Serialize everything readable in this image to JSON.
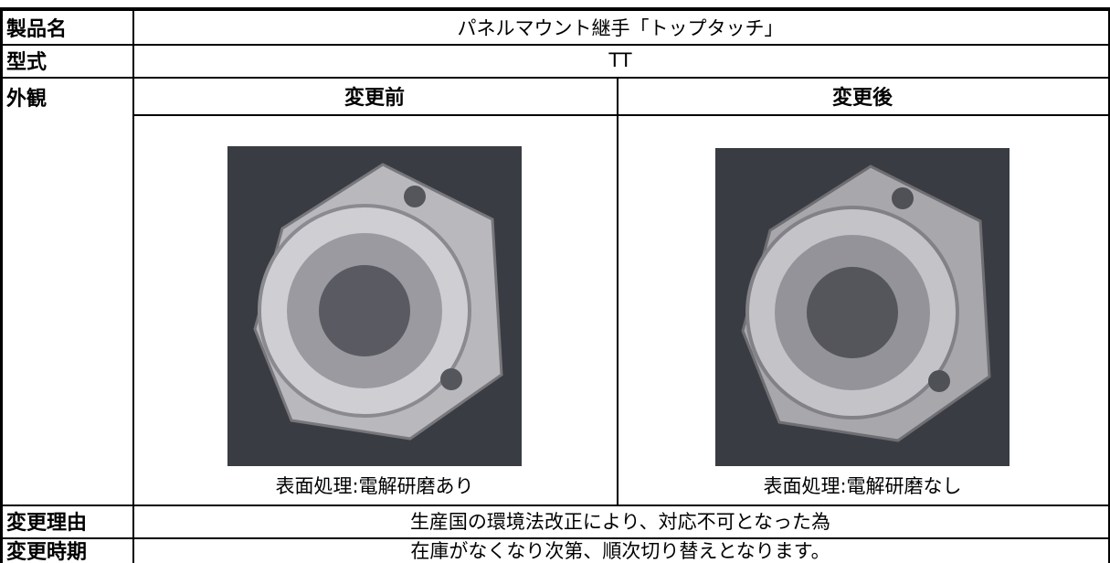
{
  "table": {
    "labels": [
      "製品名",
      "型式",
      "外観",
      "変更理由",
      "変更時期"
    ],
    "product_name": "パネルマウント継手「トップタッチ」",
    "model": "TT",
    "before": {
      "heading": "変更前",
      "caption": "表面処理:電解研磨あり"
    },
    "after": {
      "heading": "変更後",
      "caption": "表面処理:電解研磨なし"
    },
    "reason": "生産国の環境法改正により、対応不可となった為",
    "timing": "在庫がなくなり次第、順次切り替えとなります。"
  }
}
